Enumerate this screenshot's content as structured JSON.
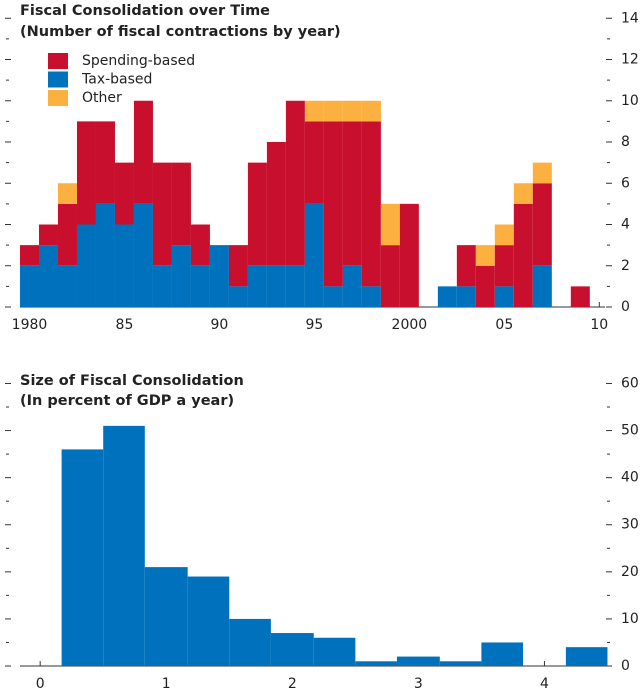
{
  "chart_data": [
    {
      "type": "stacked-bar",
      "title": "Fiscal Consolidation over Time",
      "subtitle": "(Number of fiscal contractions by year)",
      "x": [
        1980,
        1981,
        1982,
        1983,
        1984,
        1985,
        1986,
        1987,
        1988,
        1989,
        1990,
        1991,
        1992,
        1993,
        1994,
        1995,
        1996,
        1997,
        1998,
        1999,
        2000,
        2001,
        2002,
        2003,
        2004,
        2005,
        2006,
        2007,
        2008,
        2009
      ],
      "series": [
        {
          "name": "Tax-based",
          "color": "#0071bc",
          "values": [
            2,
            3,
            2,
            4,
            5,
            4,
            5,
            2,
            3,
            2,
            3,
            1,
            2,
            2,
            2,
            5,
            1,
            2,
            1,
            0,
            0,
            0,
            1,
            1,
            0,
            1,
            0,
            2,
            0,
            0
          ]
        },
        {
          "name": "Spending-based",
          "color": "#c8102e",
          "values": [
            1,
            1,
            3,
            5,
            4,
            3,
            5,
            5,
            4,
            2,
            0,
            2,
            5,
            6,
            8,
            4,
            8,
            7,
            8,
            3,
            5,
            0,
            0,
            2,
            2,
            2,
            5,
            4,
            0,
            1
          ]
        },
        {
          "name": "Other",
          "color": "#fbb040",
          "values": [
            0,
            0,
            1,
            0,
            0,
            0,
            0,
            0,
            0,
            0,
            0,
            0,
            0,
            0,
            0,
            1,
            1,
            1,
            1,
            2,
            0,
            0,
            0,
            0,
            1,
            1,
            1,
            1,
            0,
            0
          ]
        }
      ],
      "legend_order": [
        "Spending-based",
        "Tax-based",
        "Other"
      ],
      "xlim": [
        1979.5,
        2010.3
      ],
      "xticks": [
        1980,
        {
          "value": 1985,
          "label": "85"
        },
        {
          "value": 1990,
          "label": "90"
        },
        {
          "value": 1995,
          "label": "95"
        },
        2000,
        {
          "value": 2005,
          "label": "05"
        },
        {
          "value": 2010,
          "label": "10"
        }
      ],
      "ylim": [
        0,
        14.4
      ],
      "yticks": [
        0,
        2,
        4,
        6,
        8,
        10,
        12,
        14
      ]
    },
    {
      "type": "histogram",
      "title": "Size of Fiscal Consolidation",
      "subtitle": "(In percent of GDP a year)",
      "bins": [
        0.17,
        0.5,
        0.83,
        1.17,
        1.5,
        1.83,
        2.17,
        2.5,
        2.83,
        3.17,
        3.5,
        3.83,
        4.17,
        4.5
      ],
      "values": [
        46,
        51,
        21,
        19,
        10,
        7,
        6,
        1,
        2,
        1,
        5,
        0,
        4
      ],
      "color": "#0071bc",
      "xlim": [
        -0.16,
        4.52
      ],
      "xticks": [
        0,
        1,
        2,
        3,
        4
      ],
      "ylim": [
        0,
        61.8
      ],
      "yticks": [
        0,
        10,
        20,
        30,
        40,
        50,
        60
      ]
    }
  ]
}
